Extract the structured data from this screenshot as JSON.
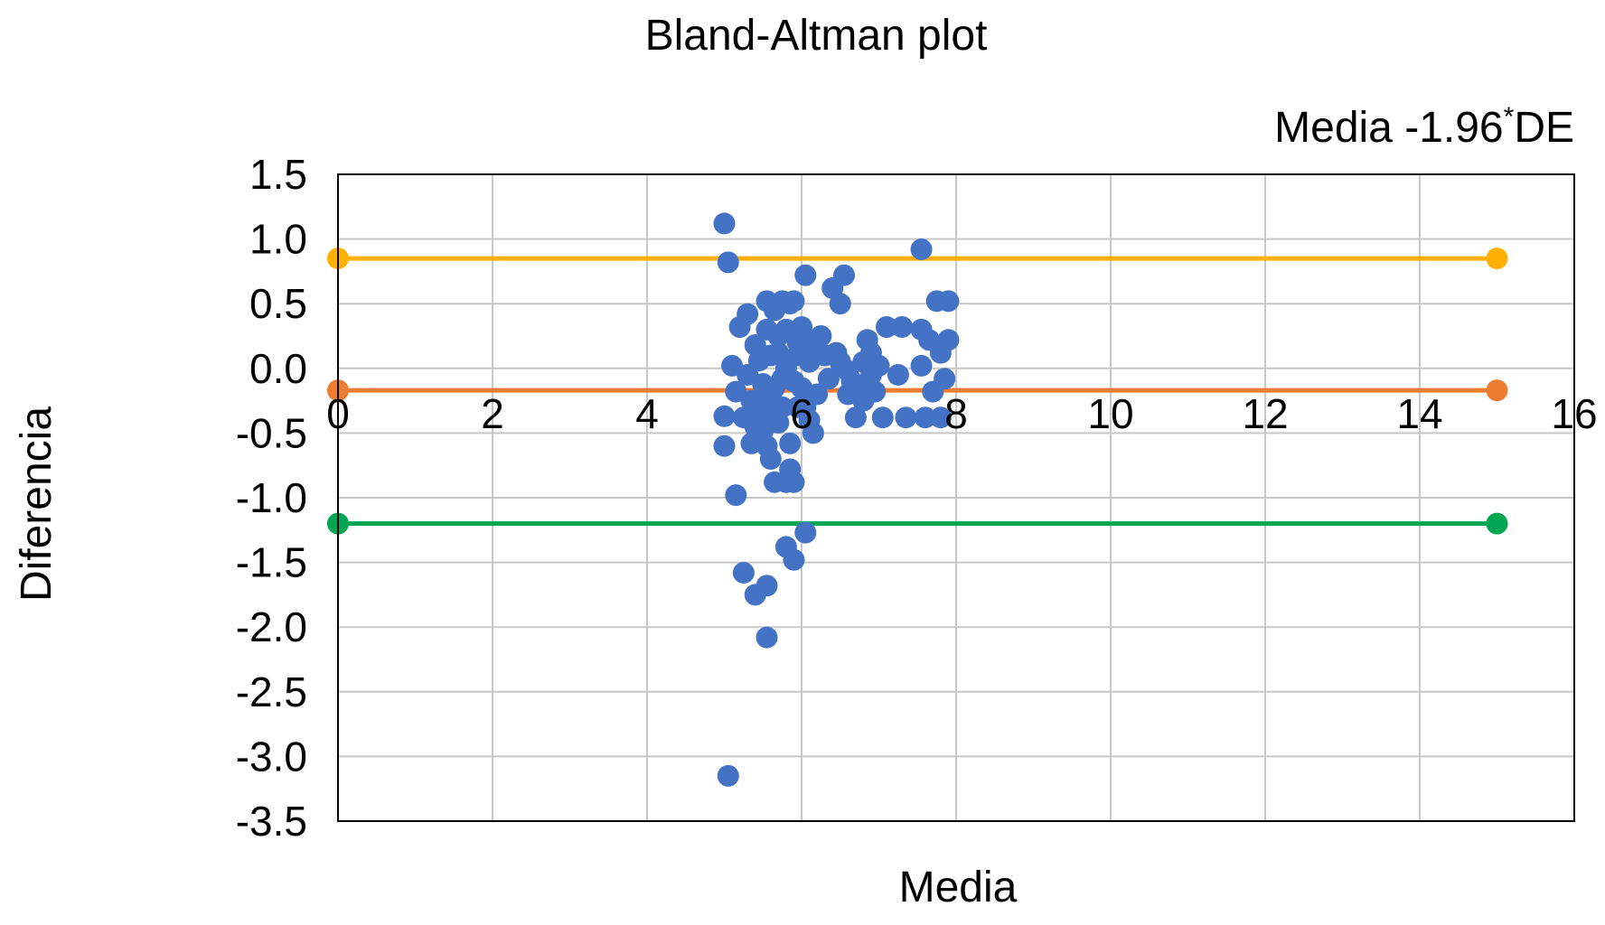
{
  "chart_data": {
    "type": "scatter",
    "title": "Bland-Altman plot",
    "xlabel": "Media",
    "ylabel": "Diferencia",
    "annotation": "Media -1.96*DE",
    "annotation_main": "Media -1.96",
    "annotation_sup": "*",
    "annotation_tail": "DE",
    "xlim": [
      0,
      16
    ],
    "ylim": [
      -3.5,
      1.5
    ],
    "xticks": [
      0,
      2,
      4,
      6,
      8,
      10,
      12,
      14,
      16
    ],
    "yticks": [
      1.5,
      1.0,
      0.5,
      0.0,
      -0.5,
      -1.0,
      -1.5,
      -2.0,
      -2.5,
      -3.0,
      -3.5
    ],
    "xtick_labels": [
      "0",
      "2",
      "4",
      "6",
      "8",
      "10",
      "12",
      "14",
      "16"
    ],
    "ytick_labels": [
      "1.5",
      "1.0",
      "0.5",
      "0.0",
      "-0.5",
      "-1.0",
      "-1.5",
      "-2.0",
      "-2.5",
      "-3.0",
      "-3.5"
    ],
    "grid": true,
    "colors": {
      "points": "#4472C4",
      "upper_limit": "#FFB000",
      "mean_difference": "#ED7D31",
      "lower_limit": "#00A651",
      "grid": "#c8c8c8",
      "frame": "#000000"
    },
    "series": [
      {
        "points": [
          [
            5.0,
            1.12
          ],
          [
            5.05,
            0.82
          ],
          [
            5.0,
            -0.37
          ],
          [
            5.0,
            -0.6
          ],
          [
            5.15,
            -0.98
          ],
          [
            5.25,
            -1.58
          ],
          [
            5.55,
            -1.68
          ],
          [
            5.4,
            -1.75
          ],
          [
            5.55,
            -2.08
          ],
          [
            5.05,
            -3.15
          ],
          [
            5.8,
            -1.38
          ],
          [
            5.9,
            -1.48
          ],
          [
            6.05,
            -1.27
          ],
          [
            5.1,
            0.02
          ],
          [
            5.15,
            -0.18
          ],
          [
            5.2,
            0.32
          ],
          [
            5.25,
            -0.38
          ],
          [
            5.3,
            0.42
          ],
          [
            5.3,
            -0.05
          ],
          [
            5.35,
            -0.58
          ],
          [
            5.4,
            0.18
          ],
          [
            5.45,
            -0.3
          ],
          [
            5.45,
            0.06
          ],
          [
            5.5,
            -0.12
          ],
          [
            5.5,
            -0.48
          ],
          [
            5.55,
            0.52
          ],
          [
            5.55,
            0.3
          ],
          [
            5.6,
            -0.7
          ],
          [
            5.6,
            -0.22
          ],
          [
            5.65,
            0.45
          ],
          [
            5.65,
            -0.88
          ],
          [
            5.7,
            0.12
          ],
          [
            5.7,
            -0.42
          ],
          [
            5.75,
            0.52
          ],
          [
            5.75,
            -0.08
          ],
          [
            5.8,
            0.3
          ],
          [
            5.8,
            -0.88
          ],
          [
            5.85,
            0.5
          ],
          [
            5.85,
            -0.58
          ],
          [
            5.85,
            -0.78
          ],
          [
            5.9,
            0.52
          ],
          [
            5.9,
            -0.88
          ],
          [
            5.95,
            0.2
          ],
          [
            5.95,
            -0.3
          ],
          [
            6.0,
            0.32
          ],
          [
            6.0,
            -0.15
          ],
          [
            6.05,
            0.72
          ],
          [
            6.1,
            0.05
          ],
          [
            6.15,
            -0.5
          ],
          [
            6.2,
            -0.2
          ],
          [
            6.25,
            0.25
          ],
          [
            6.3,
            0.1
          ],
          [
            6.4,
            0.62
          ],
          [
            6.45,
            0.12
          ],
          [
            6.5,
            0.5
          ],
          [
            6.55,
            0.72
          ],
          [
            6.6,
            -0.02
          ],
          [
            6.65,
            -0.1
          ],
          [
            6.7,
            -0.38
          ],
          [
            6.75,
            -0.15
          ],
          [
            6.8,
            0.05
          ],
          [
            6.85,
            0.22
          ],
          [
            6.9,
            -0.05
          ],
          [
            6.95,
            -0.18
          ],
          [
            7.0,
            0.02
          ],
          [
            7.05,
            -0.38
          ],
          [
            7.1,
            0.32
          ],
          [
            7.25,
            -0.05
          ],
          [
            7.3,
            0.32
          ],
          [
            7.35,
            -0.38
          ],
          [
            7.55,
            0.92
          ],
          [
            7.55,
            0.3
          ],
          [
            7.55,
            0.02
          ],
          [
            7.6,
            -0.38
          ],
          [
            7.65,
            0.22
          ],
          [
            7.7,
            -0.18
          ],
          [
            7.75,
            0.52
          ],
          [
            7.8,
            0.12
          ],
          [
            7.8,
            -0.38
          ],
          [
            7.85,
            -0.08
          ],
          [
            7.9,
            0.52
          ],
          [
            7.9,
            0.22
          ],
          [
            5.35,
            -0.25
          ],
          [
            5.45,
            -0.55
          ],
          [
            5.5,
            -0.35
          ],
          [
            5.65,
            -0.15
          ],
          [
            5.7,
            0.25
          ],
          [
            5.75,
            -0.3
          ],
          [
            5.8,
            0.0
          ],
          [
            5.9,
            -0.1
          ],
          [
            5.95,
            0.1
          ],
          [
            6.05,
            -0.3
          ],
          [
            6.15,
            0.2
          ],
          [
            6.35,
            -0.08
          ],
          [
            6.5,
            0.05
          ],
          [
            6.6,
            -0.2
          ],
          [
            6.8,
            -0.25
          ],
          [
            6.9,
            0.12
          ],
          [
            5.6,
            0.1
          ],
          [
            5.4,
            -0.45
          ],
          [
            5.55,
            -0.6
          ],
          [
            6.1,
            -0.4
          ]
        ]
      }
    ],
    "lines": [
      {
        "role": "upper_limit",
        "y": 0.85,
        "x": [
          0,
          15
        ]
      },
      {
        "role": "mean_difference",
        "y": -0.17,
        "x": [
          0,
          15
        ]
      },
      {
        "role": "lower_limit",
        "y": -1.2,
        "x": [
          0,
          15
        ]
      }
    ]
  }
}
